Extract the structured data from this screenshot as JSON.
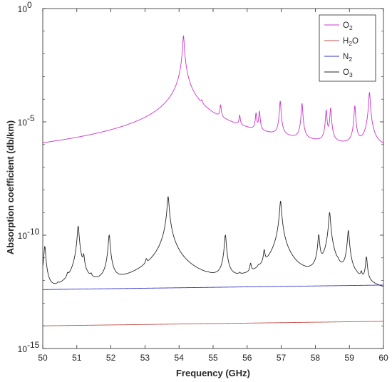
{
  "chart_data": {
    "type": "line",
    "xlabel": "Frequency (GHz)",
    "ylabel": "Absorption coefficient (db/km)",
    "xlim": [
      50,
      60
    ],
    "ylim": [
      1e-15,
      1
    ],
    "yscale": "log",
    "x_ticks": [
      "50",
      "51",
      "52",
      "53",
      "54",
      "55",
      "56",
      "57",
      "58",
      "59",
      "60"
    ],
    "y_ticks": [
      {
        "base": "10",
        "exp": "0"
      },
      {
        "base": "10",
        "exp": "-5"
      },
      {
        "base": "10",
        "exp": "-10"
      },
      {
        "base": "10",
        "exp": "-15"
      }
    ],
    "legend_position": "top-right",
    "series": [
      {
        "name": "O",
        "sub": "2",
        "name_after": "",
        "color": "#cc33cc",
        "baseline": [
          [
            50,
            -10.1
          ],
          [
            52,
            -9.7
          ],
          [
            54,
            -8.9
          ],
          [
            56,
            -8.1
          ],
          [
            58,
            -7.3
          ],
          [
            60,
            -6.8
          ]
        ],
        "peaks": [
          [
            50.47,
            -9.9
          ],
          [
            50.99,
            -9.0
          ],
          [
            51.5,
            -8.5
          ],
          [
            52.02,
            -7.2
          ],
          [
            52.54,
            -7.0
          ],
          [
            53.07,
            -6.7
          ],
          [
            53.6,
            -6.5
          ],
          [
            54.13,
            -1.2
          ],
          [
            54.67,
            -4.6
          ],
          [
            55.22,
            -4.4
          ],
          [
            55.78,
            -4.9
          ],
          [
            56.26,
            -4.7
          ],
          [
            56.36,
            -4.6
          ],
          [
            56.97,
            -4.1
          ],
          [
            57.61,
            -4.2
          ],
          [
            58.32,
            -4.5
          ],
          [
            58.45,
            -4.4
          ],
          [
            59.16,
            -4.3
          ],
          [
            59.59,
            -3.7
          ]
        ],
        "peak_width": 0.018
      },
      {
        "name": "H",
        "sub": "2",
        "name_after": "O",
        "color": "#c0504d",
        "baseline": [
          [
            50,
            -14.0
          ],
          [
            60,
            -13.8
          ]
        ],
        "peaks": [],
        "peak_width": 0.02
      },
      {
        "name": "N",
        "sub": "2",
        "name_after": "",
        "color": "#3333cc",
        "baseline": [
          [
            50,
            -12.4
          ],
          [
            60,
            -12.2
          ]
        ],
        "peaks": [],
        "peak_width": 0.02
      },
      {
        "name": "O",
        "sub": "3",
        "name_after": "",
        "color": "#262626",
        "baseline": [
          [
            50,
            -14.0
          ],
          [
            52,
            -13.6
          ],
          [
            54,
            -13.5
          ],
          [
            56,
            -14.0
          ],
          [
            58,
            -13.8
          ],
          [
            60,
            -14.0
          ]
        ],
        "peaks": [
          [
            50.06,
            -10.5
          ],
          [
            50.45,
            -13.0
          ],
          [
            50.73,
            -12.2
          ],
          [
            51.04,
            -9.6
          ],
          [
            51.2,
            -11.0
          ],
          [
            51.42,
            -12.3
          ],
          [
            51.95,
            -10.0
          ],
          [
            53.04,
            -11.5
          ],
          [
            53.68,
            -8.3
          ],
          [
            54.62,
            -13.6
          ],
          [
            54.85,
            -13.0
          ],
          [
            55.36,
            -10.0
          ],
          [
            55.78,
            -12.5
          ],
          [
            56.1,
            -11.5
          ],
          [
            56.33,
            -12.2
          ],
          [
            56.5,
            -10.8
          ],
          [
            56.98,
            -8.5
          ],
          [
            57.35,
            -13.0
          ],
          [
            58.1,
            -10.0
          ],
          [
            58.42,
            -9.0
          ],
          [
            58.66,
            -12.0
          ],
          [
            58.97,
            -9.8
          ],
          [
            59.2,
            -12.8
          ],
          [
            59.35,
            -12.0
          ],
          [
            59.5,
            -11.0
          ]
        ],
        "peak_width": 0.022
      }
    ]
  }
}
